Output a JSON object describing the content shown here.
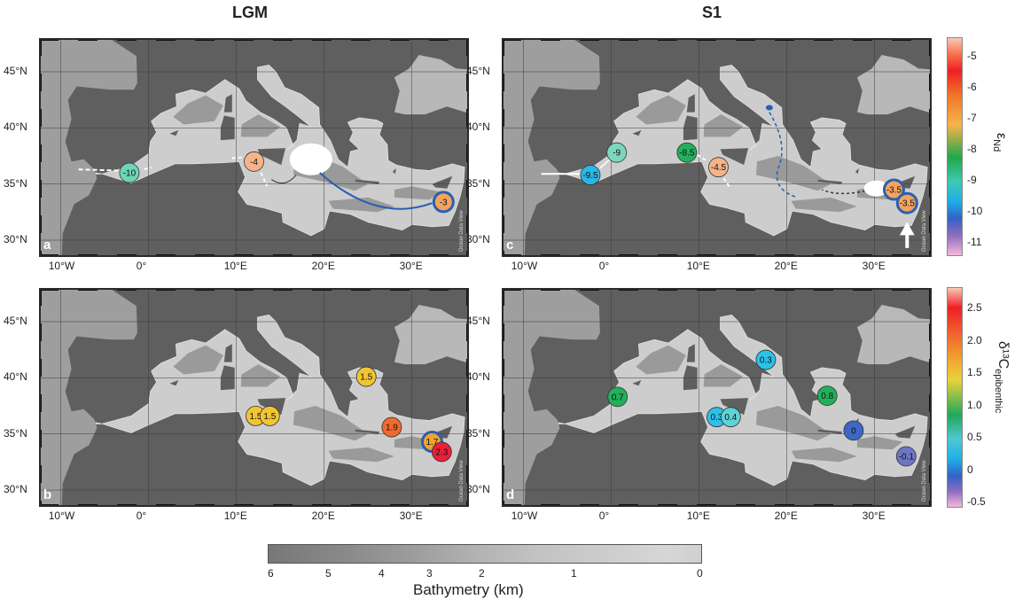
{
  "titles": {
    "left": "LGM",
    "right": "S1"
  },
  "axes": {
    "lat_labels": [
      "45°N",
      "40°N",
      "35°N",
      "30°N"
    ],
    "lon_labels": [
      "10°W",
      "0°",
      "10°E",
      "20°E",
      "30°E"
    ]
  },
  "credit": "Ocean Data View",
  "panels": {
    "a": {
      "letter": "a",
      "markers": [
        {
          "lon": -2.2,
          "lat": 36.0,
          "value": -10,
          "label": "-10",
          "color": "#6fd3b8"
        },
        {
          "lon": 12.0,
          "lat": 37.0,
          "value": -4,
          "label": "-4",
          "color": "#f6b38a"
        },
        {
          "lon": 33.6,
          "lat": 33.4,
          "value": -3,
          "label": "-3",
          "color": "#f4a35f",
          "ring": "#2a5fb0"
        }
      ]
    },
    "c": {
      "letter": "c",
      "markers": [
        {
          "lon": 0.6,
          "lat": 37.8,
          "value": -9,
          "label": "-9",
          "color": "#7dd7bd"
        },
        {
          "lon": -2.4,
          "lat": 35.8,
          "value": -9.5,
          "label": "-9.5",
          "color": "#2bb6e6"
        },
        {
          "lon": 8.6,
          "lat": 37.8,
          "value": -8.5,
          "label": "-8.5",
          "color": "#22b05a"
        },
        {
          "lon": 12.2,
          "lat": 36.5,
          "value": -4.5,
          "label": "-4.5",
          "color": "#f6b38a"
        },
        {
          "lon": 32.2,
          "lat": 34.5,
          "value": -3.5,
          "label": "-3.5",
          "color": "#f4a35f",
          "ring": "#2a5fb0"
        },
        {
          "lon": 33.7,
          "lat": 33.3,
          "value": -3.5,
          "label": "-3.5",
          "color": "#f4a35f",
          "ring": "#2a5fb0"
        }
      ]
    },
    "b": {
      "letter": "b",
      "markers": [
        {
          "lon": 12.2,
          "lat": 36.6,
          "value": 1.5,
          "label": "1.5",
          "color": "#f0c531"
        },
        {
          "lon": 13.8,
          "lat": 36.6,
          "value": 1.5,
          "label": "1.5",
          "color": "#f0c531"
        },
        {
          "lon": 24.8,
          "lat": 40.1,
          "value": 1.5,
          "label": "1.5",
          "color": "#f0c531"
        },
        {
          "lon": 27.7,
          "lat": 35.6,
          "value": 1.9,
          "label": "1.9",
          "color": "#f06a2f"
        },
        {
          "lon": 32.3,
          "lat": 34.3,
          "value": 1.7,
          "label": "1.7",
          "color": "#f0a332",
          "ring": "#2a5fb0"
        },
        {
          "lon": 33.4,
          "lat": 33.4,
          "value": 2.3,
          "label": "2.3",
          "color": "#ea1f3a"
        }
      ]
    },
    "d": {
      "letter": "d",
      "markers": [
        {
          "lon": 0.7,
          "lat": 38.3,
          "value": 0.7,
          "label": "0.7",
          "color": "#22b05a"
        },
        {
          "lon": 12.0,
          "lat": 36.5,
          "value": 0.3,
          "label": "0.3",
          "color": "#2bc1e8"
        },
        {
          "lon": 13.6,
          "lat": 36.5,
          "value": 0.4,
          "label": "0.4",
          "color": "#5fd3d6"
        },
        {
          "lon": 17.6,
          "lat": 41.6,
          "value": 0.3,
          "label": "0.3",
          "color": "#2bc1e8"
        },
        {
          "lon": 24.6,
          "lat": 38.4,
          "value": 0.8,
          "label": "0.8",
          "color": "#22b05a"
        },
        {
          "lon": 27.6,
          "lat": 35.3,
          "value": 0,
          "label": "0",
          "color": "#3d67c4"
        },
        {
          "lon": 33.6,
          "lat": 33.0,
          "value": -0.1,
          "label": "-0.1",
          "color": "#6c76c4"
        }
      ]
    }
  },
  "colorbars": {
    "nd": {
      "title_main": "ε",
      "title_sub": "Nd",
      "ticks": [
        "-5",
        "-6",
        "-7",
        "-8",
        "-9",
        "-10",
        "-11"
      ]
    },
    "c13": {
      "title_main": "δ¹³C",
      "title_sub": "epibenthic",
      "ticks": [
        "2.5",
        "2.0",
        "1.5",
        "1.0",
        "0.5",
        "0",
        "-0.5"
      ]
    }
  },
  "bathymetry": {
    "title": "Bathymetry (km)",
    "ticks": [
      "6",
      "5",
      "4",
      "3",
      "2",
      "1",
      "0"
    ]
  },
  "colors": {
    "land": "#5f5f5f",
    "sea_shallow": "#cdcdcd",
    "sea_deep": "#9a9a9a",
    "flow_white": "#ffffff",
    "flow_blue": "#2a5fb0"
  }
}
